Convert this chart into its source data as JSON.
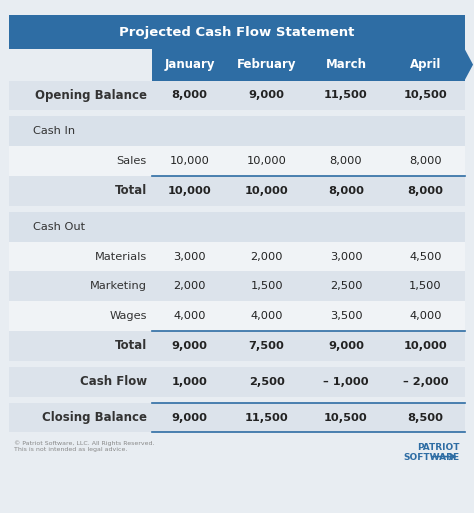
{
  "title": "Projected Cash Flow Statement",
  "title_bg": "#2e6da4",
  "title_color": "#ffffff",
  "header_bg": "#2e6da4",
  "header_color": "#ffffff",
  "months": [
    "January",
    "February",
    "March",
    "April"
  ],
  "bg_color": "#e8edf2",
  "table_bg": "#ffffff",
  "section_bg": "#d9e1ea",
  "bold_row_bg": "#dce3eb",
  "light_row_bg": "#f0f3f6",
  "white_row_bg": "#ffffff",
  "rows": [
    {
      "label": "Opening Balance",
      "values": [
        "8,000",
        "9,000",
        "11,500",
        "10,500"
      ],
      "style": "bold",
      "bg": "#dce3eb",
      "top_gap": false
    },
    {
      "label": "Cash In",
      "values": [
        "",
        "",
        "",
        ""
      ],
      "style": "section",
      "bg": "#d9e1ea",
      "top_gap": true
    },
    {
      "label": "Sales",
      "values": [
        "10,000",
        "10,000",
        "8,000",
        "8,000"
      ],
      "style": "normal",
      "bg": "#f0f3f6",
      "top_gap": false
    },
    {
      "label": "Total",
      "values": [
        "10,000",
        "10,000",
        "8,000",
        "8,000"
      ],
      "style": "bold_line",
      "bg": "#dce3eb",
      "top_gap": false
    },
    {
      "label": "Cash Out",
      "values": [
        "",
        "",
        "",
        ""
      ],
      "style": "section",
      "bg": "#d9e1ea",
      "top_gap": true
    },
    {
      "label": "Materials",
      "values": [
        "3,000",
        "2,000",
        "3,000",
        "4,500"
      ],
      "style": "normal",
      "bg": "#f0f3f6",
      "top_gap": false
    },
    {
      "label": "Marketing",
      "values": [
        "2,000",
        "1,500",
        "2,500",
        "1,500"
      ],
      "style": "normal",
      "bg": "#dce3eb",
      "top_gap": false
    },
    {
      "label": "Wages",
      "values": [
        "4,000",
        "4,000",
        "3,500",
        "4,000"
      ],
      "style": "normal",
      "bg": "#f0f3f6",
      "top_gap": false
    },
    {
      "label": "Total",
      "values": [
        "9,000",
        "7,500",
        "9,000",
        "10,000"
      ],
      "style": "bold_line",
      "bg": "#dce3eb",
      "top_gap": false
    },
    {
      "label": "Cash Flow",
      "values": [
        "1,000",
        "2,500",
        "– 1,000",
        "– 2,000"
      ],
      "style": "bold",
      "bg": "#dce3eb",
      "top_gap": true
    },
    {
      "label": "Closing Balance",
      "values": [
        "9,000",
        "11,500",
        "10,500",
        "8,500"
      ],
      "style": "bold_line_bottom",
      "bg": "#dce3eb",
      "top_gap": true
    }
  ],
  "footer_text": "© Patriot Software, LLC. All Rights Reserved.\nThis is not intended as legal advice.",
  "footer_color": "#888888",
  "accent_color": "#2e6da4"
}
